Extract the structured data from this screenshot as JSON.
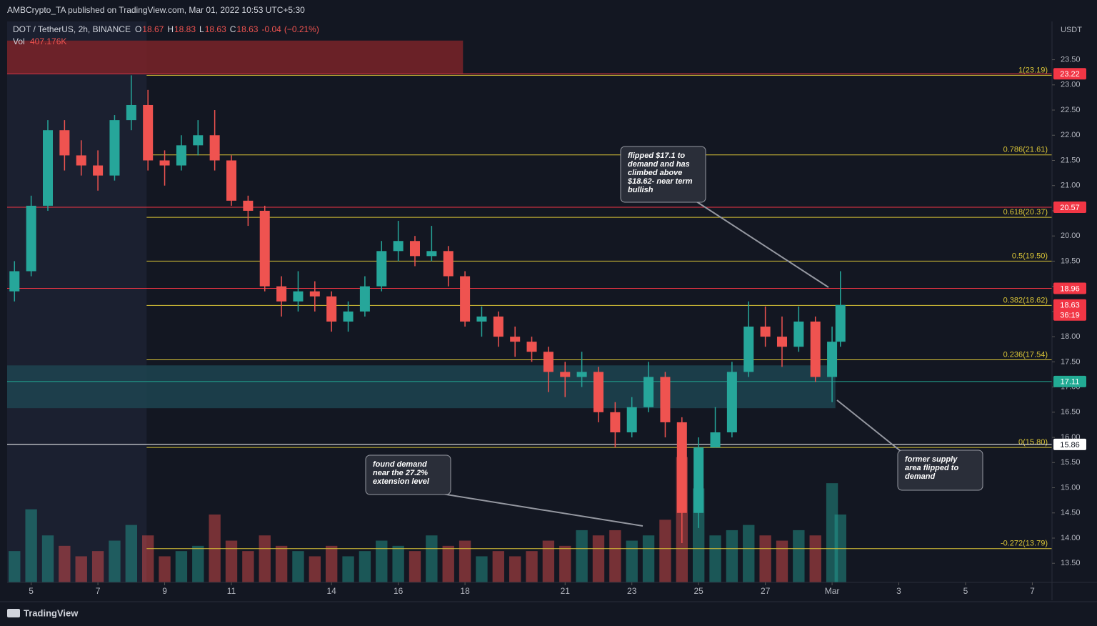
{
  "chart_data": {
    "type": "candlestick",
    "header_text": "AMBCrypto_TA published on TradingView.com, Mar 01, 2022 10:53 UTC+5:30",
    "symbol": "DOT / TetherUS, 2h, BINANCE",
    "ohlc": [
      {
        "label": "O",
        "value": 18.67
      },
      {
        "label": "H",
        "value": 18.83
      },
      {
        "label": "L",
        "value": 18.63
      },
      {
        "label": "C",
        "value": 18.63
      }
    ],
    "change": -0.04,
    "change_pct": "(−0.21%)",
    "volume_name": "Vol",
    "volume_last": "407.176K",
    "currency": "USDT",
    "brand": "TradingView",
    "up_color": "#26a69a",
    "down_color": "#ef5350",
    "x": [
      4.5,
      5,
      5.5,
      6,
      6.5,
      7,
      7.5,
      8,
      8.5,
      9,
      9.5,
      10,
      10.5,
      11,
      11.5,
      12,
      12.5,
      13,
      13.5,
      14,
      14.5,
      15,
      15.5,
      16,
      16.5,
      17,
      17.5,
      18,
      18.5,
      19,
      19.5,
      20,
      20.5,
      21,
      21.5,
      22,
      22.5,
      23,
      23.5,
      24,
      24.5,
      25,
      25.5,
      26,
      26.5,
      27,
      27.5,
      28,
      28.5,
      29,
      29.25
    ],
    "open": [
      18.9,
      19.3,
      20.6,
      22.1,
      21.6,
      21.4,
      21.2,
      22.3,
      22.6,
      21.5,
      21.4,
      21.8,
      22.0,
      21.5,
      20.7,
      20.5,
      19.0,
      18.7,
      18.9,
      18.8,
      18.3,
      18.5,
      19.0,
      19.7,
      19.9,
      19.6,
      19.7,
      19.2,
      18.3,
      18.4,
      18.0,
      17.9,
      17.7,
      17.3,
      17.2,
      17.3,
      16.5,
      16.1,
      16.6,
      17.2,
      16.3,
      14.5,
      15.8,
      16.1,
      17.3,
      18.2,
      18.0,
      17.8,
      18.3,
      17.2,
      17.9
    ],
    "high": [
      19.5,
      20.8,
      22.3,
      22.3,
      21.9,
      21.7,
      22.4,
      23.19,
      22.9,
      21.7,
      22.0,
      22.3,
      22.5,
      21.6,
      20.8,
      20.6,
      19.2,
      19.3,
      19.1,
      18.9,
      18.7,
      19.2,
      19.9,
      20.3,
      20.0,
      20.2,
      19.8,
      19.3,
      18.6,
      18.5,
      18.2,
      18.0,
      17.8,
      17.5,
      17.7,
      17.4,
      16.7,
      16.8,
      17.5,
      17.3,
      16.4,
      16.0,
      16.6,
      17.5,
      18.7,
      18.6,
      18.4,
      18.6,
      18.4,
      18.2,
      19.3
    ],
    "low": [
      18.7,
      19.2,
      20.5,
      21.3,
      21.2,
      20.9,
      21.1,
      22.1,
      21.3,
      21.0,
      21.3,
      21.6,
      21.3,
      20.6,
      20.2,
      18.9,
      18.4,
      18.5,
      18.5,
      18.1,
      18.1,
      18.4,
      18.9,
      19.5,
      19.4,
      19.5,
      19.0,
      18.2,
      18.0,
      17.8,
      17.6,
      17.5,
      16.9,
      16.8,
      17.0,
      16.3,
      15.8,
      16.0,
      16.5,
      16.0,
      13.9,
      14.2,
      15.8,
      16.0,
      17.2,
      17.8,
      17.4,
      17.7,
      17.1,
      16.7,
      17.8
    ],
    "close": [
      19.3,
      20.6,
      22.1,
      21.6,
      21.4,
      21.2,
      22.3,
      22.6,
      21.5,
      21.4,
      21.8,
      22.0,
      21.5,
      20.7,
      20.5,
      19.0,
      18.7,
      18.9,
      18.8,
      18.3,
      18.5,
      19.0,
      19.7,
      19.9,
      19.6,
      19.7,
      19.2,
      18.3,
      18.4,
      18.0,
      17.9,
      17.7,
      17.3,
      17.2,
      17.3,
      16.5,
      16.1,
      16.6,
      17.2,
      16.3,
      14.5,
      15.8,
      16.1,
      17.3,
      18.2,
      18.0,
      17.8,
      18.3,
      17.2,
      17.9,
      18.63
    ],
    "volume": [
      600,
      1400,
      900,
      700,
      500,
      600,
      800,
      1100,
      900,
      500,
      600,
      700,
      1300,
      800,
      600,
      900,
      700,
      600,
      500,
      700,
      500,
      600,
      800,
      700,
      600,
      900,
      700,
      800,
      500,
      600,
      500,
      600,
      800,
      700,
      1000,
      900,
      1000,
      800,
      900,
      1200,
      2400,
      1800,
      900,
      1000,
      1100,
      900,
      800,
      1000,
      900,
      1900,
      1300
    ],
    "volume_lim": [
      0,
      2600
    ],
    "xlim": [
      4.28,
      35.59
    ],
    "xticks": [
      5,
      7,
      9,
      11,
      14,
      16,
      18,
      21,
      23,
      25,
      27,
      {
        "value": 29,
        "label": "Mar"
      },
      {
        "value": 31,
        "label": "3"
      },
      {
        "value": 33,
        "label": "5"
      },
      {
        "value": 35,
        "label": "7"
      }
    ],
    "ylim": [
      13.12,
      24.26
    ],
    "yticks": [
      {
        "value": 13.5,
        "label": "13.50"
      },
      {
        "value": 14,
        "label": "14.00"
      },
      {
        "value": 14.5,
        "label": "14.50"
      },
      {
        "value": 15,
        "label": "15.00"
      },
      {
        "value": 15.5,
        "label": "15.50"
      },
      {
        "value": 16,
        "label": "16.00"
      },
      {
        "value": 16.5,
        "label": "16.50"
      },
      {
        "value": 17,
        "label": "17.00"
      },
      {
        "value": 17.5,
        "label": "17.50"
      },
      {
        "value": 18,
        "label": "18.00"
      },
      {
        "value": 18.5,
        "label": "18.50"
      },
      {
        "value": 19,
        "label": "19.00"
      },
      {
        "value": 19.5,
        "label": "19.50"
      },
      {
        "value": 20,
        "label": "20.00"
      },
      {
        "value": 20.5,
        "label": "20.50"
      },
      {
        "value": 21,
        "label": "21.00"
      },
      {
        "value": 21.5,
        "label": "21.50"
      },
      {
        "value": 22,
        "label": "22.00"
      },
      {
        "value": 22.5,
        "label": "22.50"
      },
      {
        "value": 23,
        "label": "23.00"
      },
      {
        "value": 23.5,
        "label": "23.50"
      }
    ],
    "fib_start": 8.46,
    "fib_color": "#d9c437",
    "fib_levels": [
      {
        "value": 23.19,
        "label": "1(23.19)"
      },
      {
        "value": 21.61,
        "label": "0.786(21.61)"
      },
      {
        "value": 20.37,
        "label": "0.618(20.37)"
      },
      {
        "value": 19.5,
        "label": "0.5(19.50)"
      },
      {
        "value": 18.62,
        "label": "0.382(18.62)"
      },
      {
        "value": 17.54,
        "label": "0.236(17.54)"
      },
      {
        "value": 15.8,
        "label": "0(15.80)"
      },
      {
        "value": 13.79,
        "label": "-0.272(13.79)"
      }
    ],
    "levels": [
      {
        "value": 23.22,
        "color": "#f23645"
      },
      {
        "value": 20.57,
        "color": "#f23645"
      },
      {
        "value": 18.96,
        "color": "#f23645"
      },
      {
        "value": 17.11,
        "color": "#22ab94"
      },
      {
        "value": 15.86,
        "color": "#ffffff"
      }
    ],
    "last_price": {
      "value": 18.63,
      "countdown": "36:19",
      "color": "#f23645"
    },
    "zones": [
      {
        "x": [
          4.28,
          17.94
        ],
        "y": [
          23.23,
          23.88
        ],
        "color": "#7a2328"
      },
      {
        "x": [
          4.28,
          29.1
        ],
        "y": [
          16.58,
          17.43
        ],
        "color": "#1d4450"
      }
    ],
    "annotations": [
      {
        "lines": [
          "flipped $17.1 to",
          "demand and has",
          "climbed above",
          "$18.62- near term",
          "bullish"
        ]
      },
      {
        "lines": [
          "found demand",
          "near the 27.2%",
          "extension level"
        ]
      },
      {
        "lines": [
          "former supply",
          "area flipped to",
          "demand"
        ]
      }
    ]
  }
}
